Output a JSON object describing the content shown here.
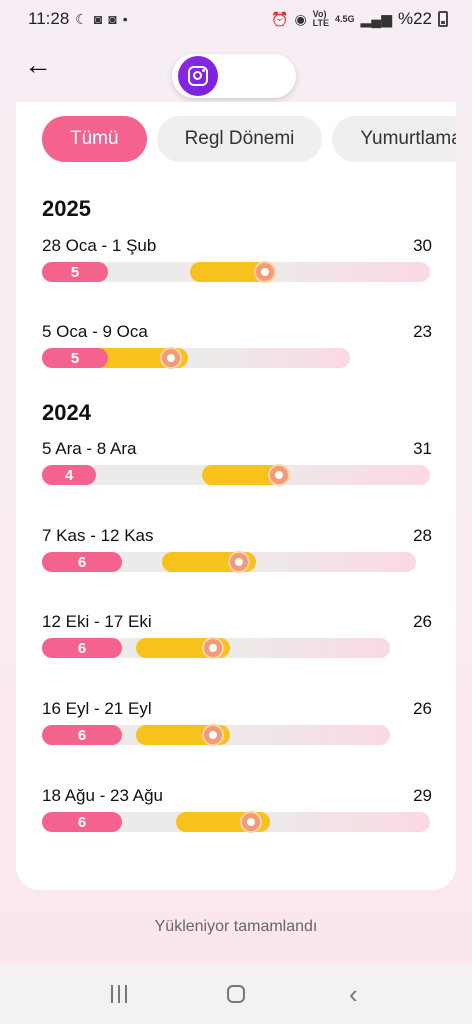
{
  "status_bar": {
    "time": "11:28",
    "net_top": "Vo)",
    "net_bottom": "LTE",
    "net2_top": "4.5G",
    "battery": "%22"
  },
  "header": {
    "back_icon": "arrow-left-icon",
    "badge_icon": "instagram-icon"
  },
  "filters": [
    {
      "label": "Tümü",
      "active": true
    },
    {
      "label": "Regl Dönemi",
      "active": false
    },
    {
      "label": "Yumurtlama",
      "active": false
    }
  ],
  "colors": {
    "period": "#f3638d",
    "fertile": "#f8c21c",
    "ovulation": "#f39a78"
  },
  "years": [
    {
      "year": "2025"
    },
    {
      "year": "2024"
    }
  ],
  "cycles": [
    {
      "range": "28 Oca - 1 Şub",
      "length": "30",
      "period_days": "5"
    },
    {
      "range": "5 Oca - 9 Oca",
      "length": "23",
      "period_days": "5"
    },
    {
      "range": "5 Ara - 8 Ara",
      "length": "31",
      "period_days": "4"
    },
    {
      "range": "7 Kas - 12 Kas",
      "length": "28",
      "period_days": "6"
    },
    {
      "range": "12 Eki - 17 Eki",
      "length": "26",
      "period_days": "6"
    },
    {
      "range": "16 Eyl - 21 Eyl",
      "length": "26",
      "period_days": "6"
    },
    {
      "range": "18 Ağu - 23 Ağu",
      "length": "29",
      "period_days": "6"
    }
  ],
  "footer": {
    "status_text": "Yükleniyor tamamlandı"
  }
}
